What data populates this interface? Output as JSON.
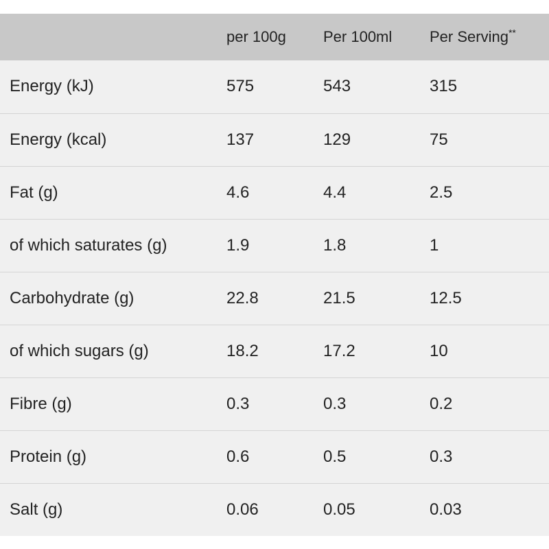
{
  "header": {
    "col1": "",
    "col2": "per 100g",
    "col3": "Per 100ml",
    "col4": "Per Serving",
    "col4_suffix": "**"
  },
  "rows": [
    {
      "label": "Energy (kJ)",
      "per100g": "575",
      "per100ml": "543",
      "serving": "315"
    },
    {
      "label": "Energy (kcal)",
      "per100g": "137",
      "per100ml": "129",
      "serving": "75"
    },
    {
      "label": "Fat (g)",
      "per100g": "4.6",
      "per100ml": "4.4",
      "serving": "2.5"
    },
    {
      "label": "of which saturates (g)",
      "per100g": "1.9",
      "per100ml": "1.8",
      "serving": "1"
    },
    {
      "label": "Carbohydrate (g)",
      "per100g": "22.8",
      "per100ml": "21.5",
      "serving": "12.5"
    },
    {
      "label": "of which sugars (g)",
      "per100g": "18.2",
      "per100ml": "17.2",
      "serving": "10"
    },
    {
      "label": "Fibre (g)",
      "per100g": "0.3",
      "per100ml": "0.3",
      "serving": "0.2"
    },
    {
      "label": "Protein (g)",
      "per100g": "0.6",
      "per100ml": "0.5",
      "serving": "0.3"
    },
    {
      "label": "Salt (g)",
      "per100g": "0.06",
      "per100ml": "0.05",
      "serving": "0.03"
    }
  ]
}
